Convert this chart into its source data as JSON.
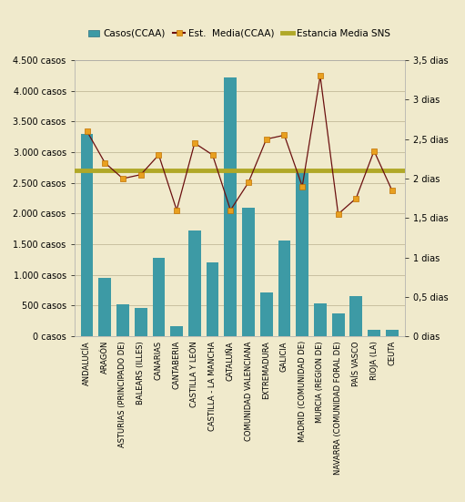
{
  "categories": [
    "ANDALUCÍA",
    "ARAGÓN",
    "ASTURIAS (PRINCIPADO DE)",
    "BALEARS (ILLES)",
    "CANARIAS",
    "CANTABERIA",
    "CASTILLA Y LEÓN",
    "CASTILLA - LA MANCHA",
    "CATALUÑA",
    "COMUNIDAD VALENCIANA",
    "EXTREMADURA",
    "GALICIA",
    "MADRID (COMUNIDAD DE)",
    "MURCIA (REGION DE)",
    "NAVARRA (COMUNIDAD FORAL DE)",
    "PAÍS VASCO",
    "RIOJA (LA)",
    "CEUTA"
  ],
  "casos": [
    3300,
    950,
    520,
    460,
    1280,
    160,
    1720,
    1200,
    4220,
    2100,
    720,
    1560,
    2700,
    540,
    380,
    650,
    100,
    100
  ],
  "estancia_media": [
    2.6,
    2.2,
    2.0,
    2.05,
    2.3,
    1.6,
    2.45,
    2.3,
    1.6,
    1.95,
    2.5,
    2.55,
    1.9,
    3.3,
    1.55,
    1.75,
    2.35,
    1.85
  ],
  "sns_line": 2.1,
  "bar_color": "#3d9aa5",
  "line_color": "#6b1010",
  "marker_color": "#e8a020",
  "marker_edge_color": "#c07000",
  "sns_color": "#b0a828",
  "background_color": "#f0eacc",
  "plot_bg_color": "#f0eacc",
  "ylim_left": [
    0,
    4500
  ],
  "ylim_right": [
    0,
    3.5
  ],
  "yticks_left": [
    0,
    500,
    1000,
    1500,
    2000,
    2500,
    3000,
    3500,
    4000,
    4500
  ],
  "yticks_left_labels": [
    "0 casos",
    "500 casos",
    "1.000 casos",
    "1.500 casos",
    "2.000 casos",
    "2.500 casos",
    "3.000 casos",
    "3.500 casos",
    "4.000 casos",
    "4.500 casos"
  ],
  "yticks_right": [
    0,
    0.5,
    1.0,
    1.5,
    2.0,
    2.5,
    3.0,
    3.5
  ],
  "yticks_right_labels": [
    "0 dias",
    "0,5 dias",
    "1 dias",
    "1,5 dias",
    "2 dias",
    "2,5 dias",
    "3 dias",
    "3,5 dias"
  ],
  "legend_casos": "Casos(CCAA)",
  "legend_estancia": "Est.  Media(CCAA)",
  "legend_sns": "Estancia Media SNS",
  "grid_color": "#c8c0a0",
  "tick_fontsize": 7,
  "label_fontsize": 6,
  "legend_fontsize": 7.5
}
